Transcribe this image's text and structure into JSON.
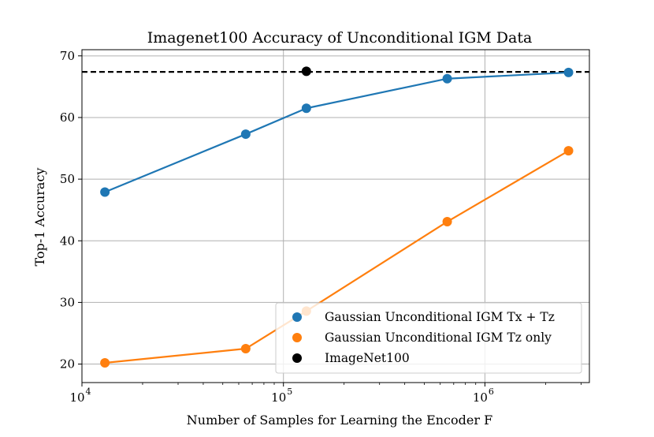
{
  "chart_data": {
    "type": "line",
    "title": "Imagenet100 Accuracy of Unconditional IGM Data",
    "xlabel": "Number of Samples for Learning the Encoder F",
    "ylabel": "Top-1 Accuracy",
    "xscale": "log",
    "xlim": [
      10000,
      3300000
    ],
    "ylim": [
      17.0,
      71.0
    ],
    "grid": true,
    "legend_position": "lower-right",
    "x_ticks": [
      {
        "value": 10000,
        "base": "10",
        "exp": "4"
      },
      {
        "value": 100000,
        "base": "10",
        "exp": "5"
      },
      {
        "value": 1000000,
        "base": "10",
        "exp": "6"
      }
    ],
    "y_ticks": [
      20,
      30,
      40,
      50,
      60,
      70
    ],
    "series": [
      {
        "name": "Gaussian Unconditional IGM Tx + Tz",
        "color": "#1f77b4",
        "style": "line-marker",
        "x": [
          13000,
          65000,
          130000,
          650000,
          2600000
        ],
        "values": [
          47.9,
          57.3,
          61.5,
          66.3,
          67.3
        ]
      },
      {
        "name": "Gaussian Unconditional IGM Tz only",
        "color": "#ff7f0e",
        "style": "line-marker",
        "x": [
          13000,
          65000,
          130000,
          650000,
          2600000
        ],
        "values": [
          20.2,
          22.5,
          28.6,
          43.1,
          54.6
        ]
      },
      {
        "name": "ImageNet100",
        "color": "#000000",
        "style": "marker",
        "x": [
          130000
        ],
        "values": [
          67.5
        ]
      }
    ],
    "reference_line": {
      "y": 67.4,
      "style": "dashed",
      "color": "#000000"
    }
  }
}
